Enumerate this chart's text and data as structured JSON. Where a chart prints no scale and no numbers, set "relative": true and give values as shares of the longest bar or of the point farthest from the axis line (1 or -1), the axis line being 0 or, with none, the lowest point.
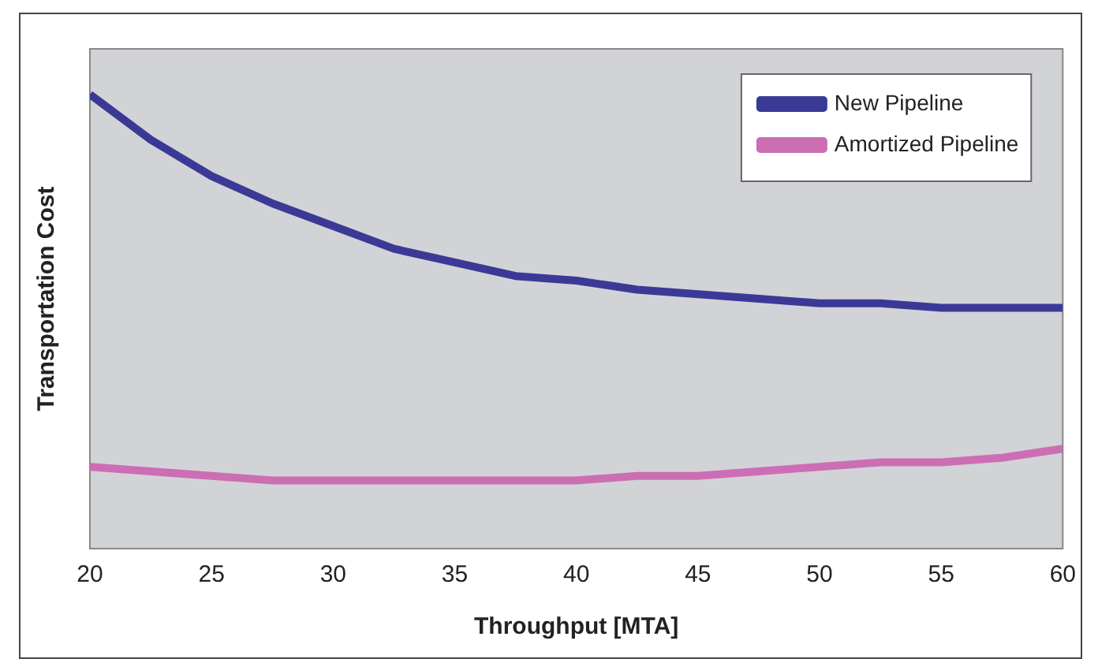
{
  "chart_data": {
    "type": "line",
    "xlabel": "Throughput [MTA]",
    "ylabel": "Transportation Cost",
    "relative": true,
    "xlim": [
      20,
      60
    ],
    "xticks": [
      20,
      25,
      30,
      35,
      40,
      45,
      50,
      55,
      60
    ],
    "x": [
      20,
      22.5,
      25,
      27.5,
      30,
      32.5,
      35,
      37.5,
      40,
      42.5,
      45,
      47.5,
      50,
      52.5,
      55,
      57.5,
      60
    ],
    "series": [
      {
        "name": "New Pipeline",
        "color": "#3a3a96",
        "values": [
          1,
          0.9,
          0.82,
          0.76,
          0.71,
          0.66,
          0.63,
          0.6,
          0.59,
          0.57,
          0.56,
          0.55,
          0.54,
          0.54,
          0.53,
          0.53,
          0.53
        ]
      },
      {
        "name": "Amortized Pipeline",
        "color": "#cc6eb3",
        "values": [
          0.18,
          0.17,
          0.16,
          0.15,
          0.15,
          0.15,
          0.15,
          0.15,
          0.15,
          0.16,
          0.16,
          0.17,
          0.18,
          0.19,
          0.19,
          0.2,
          0.22
        ]
      }
    ],
    "grid": false,
    "legend": "top right"
  }
}
